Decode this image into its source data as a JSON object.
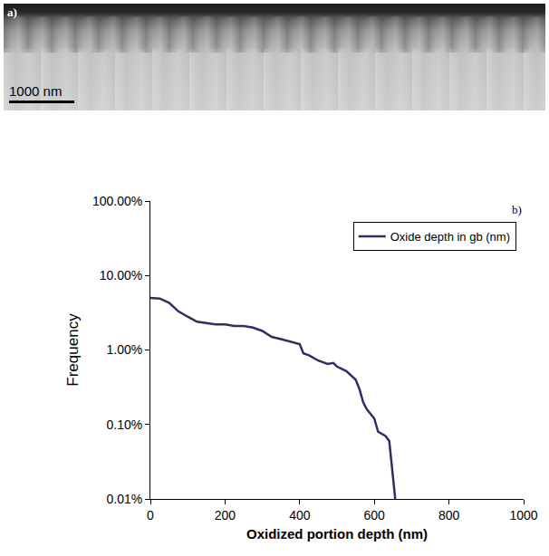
{
  "image": {
    "label": "a)",
    "scale_bar": "1000 nm"
  },
  "chart_data": {
    "type": "line",
    "annotations": [
      "b)"
    ],
    "x_label": "Oxidized portion depth (nm)",
    "y_label": "Frequency",
    "x": [
      0,
      25,
      50,
      75,
      100,
      125,
      150,
      175,
      200,
      225,
      250,
      275,
      300,
      325,
      350,
      375,
      400,
      410,
      425,
      450,
      475,
      490,
      500,
      525,
      550,
      560,
      570,
      580,
      600,
      610,
      630,
      640,
      650,
      656
    ],
    "series": [
      {
        "name": "Oxide depth in gb (nm)",
        "color": "#2e3060",
        "values": [
          5.0,
          4.9,
          4.3,
          3.3,
          2.8,
          2.4,
          2.3,
          2.2,
          2.2,
          2.1,
          2.1,
          2.0,
          1.8,
          1.5,
          1.4,
          1.3,
          1.2,
          0.9,
          0.85,
          0.72,
          0.65,
          0.67,
          0.6,
          0.52,
          0.4,
          0.3,
          0.2,
          0.16,
          0.12,
          0.08,
          0.07,
          0.06,
          0.02,
          0.01
        ]
      }
    ],
    "xlim": [
      0,
      1000
    ],
    "xticks": [
      0,
      200,
      400,
      600,
      800,
      1000
    ],
    "ylim": [
      0.01,
      100
    ],
    "yticks": [
      {
        "value": 0.01,
        "label": "0.01%"
      },
      {
        "value": 0.1,
        "label": "0.10%"
      },
      {
        "value": 1,
        "label": "1.00%"
      },
      {
        "value": 10,
        "label": "10.00%"
      },
      {
        "value": 100,
        "label": "100.00%"
      }
    ],
    "log": "y",
    "grid": false,
    "legend": "top-right"
  }
}
